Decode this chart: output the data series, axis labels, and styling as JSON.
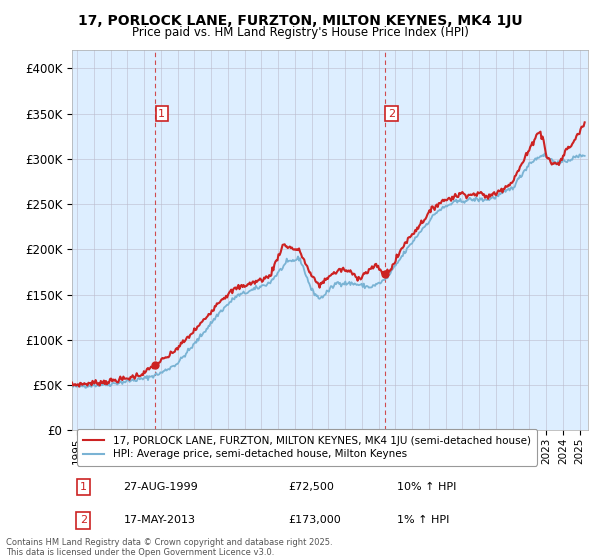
{
  "title": "17, PORLOCK LANE, FURZTON, MILTON KEYNES, MK4 1JU",
  "subtitle": "Price paid vs. HM Land Registry's House Price Index (HPI)",
  "ylabel_ticks": [
    "£0",
    "£50K",
    "£100K",
    "£150K",
    "£200K",
    "£250K",
    "£300K",
    "£350K",
    "£400K"
  ],
  "ytick_values": [
    0,
    50000,
    100000,
    150000,
    200000,
    250000,
    300000,
    350000,
    400000
  ],
  "ylim": [
    0,
    420000
  ],
  "xlim_start": 1994.7,
  "xlim_end": 2025.5,
  "hpi_color": "#7ab3d4",
  "price_color": "#cc2222",
  "marker1_x": 1999.65,
  "marker1_y": 72500,
  "marker2_x": 2013.37,
  "marker2_y": 173000,
  "chart_bg": "#ddeeff",
  "legend_line1": "17, PORLOCK LANE, FURZTON, MILTON KEYNES, MK4 1JU (semi-detached house)",
  "legend_line2": "HPI: Average price, semi-detached house, Milton Keynes",
  "annotation1_label": "1",
  "annotation1_date": "27-AUG-1999",
  "annotation1_price": "£72,500",
  "annotation1_hpi": "10% ↑ HPI",
  "annotation2_label": "2",
  "annotation2_date": "17-MAY-2013",
  "annotation2_price": "£173,000",
  "annotation2_hpi": "1% ↑ HPI",
  "footer": "Contains HM Land Registry data © Crown copyright and database right 2025.\nThis data is licensed under the Open Government Licence v3.0.",
  "bg_color": "#ffffff",
  "grid_color": "#bbbbcc"
}
